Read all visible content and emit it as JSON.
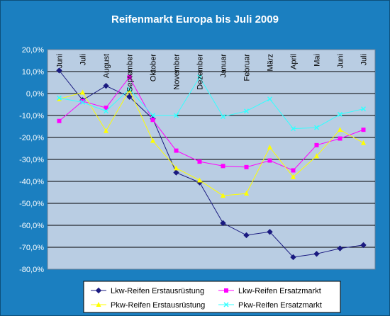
{
  "chart_data": {
    "type": "line",
    "title": "Reifenmarkt Europa bis Juli 2009",
    "xlabel": "",
    "ylabel": "",
    "categories": [
      "Juni",
      "Juli",
      "August",
      "September",
      "Oktober",
      "November",
      "Dezember",
      "Januar",
      "Februar",
      "März",
      "April",
      "Mai",
      "Juni",
      "Juli"
    ],
    "y_ticks": [
      "20,0%",
      "10,0%",
      "0,0%",
      "-10,0%",
      "-20,0%",
      "-30,0%",
      "-40,0%",
      "-50,0%",
      "-60,0%",
      "-70,0%",
      "-80,0%"
    ],
    "ylim": [
      -80,
      20
    ],
    "grid": true,
    "legend_position": "bottom",
    "series": [
      {
        "name": "Lkw-Reifen Erstausrüstung",
        "color": "#1a1a80",
        "marker": "diamond",
        "values": [
          10.5,
          -3,
          3.5,
          -1.5,
          -11.5,
          -36,
          -40.5,
          -59,
          -64.5,
          -63,
          -74.5,
          -73,
          -70.5,
          -69
        ]
      },
      {
        "name": "Lkw-Reifen Ersatzmarkt",
        "color": "#ff00ff",
        "marker": "square",
        "values": [
          -12.5,
          -3.5,
          -6.5,
          7.5,
          -12,
          -26,
          -31,
          -33,
          -33.5,
          -30.5,
          -35,
          -23.5,
          -20.5,
          -16.5
        ]
      },
      {
        "name": "Pkw-Reifen Erstausrüstung",
        "color": "#ffff00",
        "marker": "triangle",
        "values": [
          -2.5,
          0.5,
          -17,
          1.5,
          -21.5,
          -34,
          -39.5,
          -46.5,
          -45.5,
          -24.5,
          -38,
          -28.5,
          -16.5,
          -22.5
        ]
      },
      {
        "name": "Pkw-Reifen Ersatzmarkt",
        "color": "#33ffff",
        "marker": "x",
        "values": [
          -2,
          -4,
          -8,
          2,
          -10,
          -10,
          7.5,
          -10.5,
          -8,
          -2.5,
          -16,
          -15.5,
          -9.5,
          -7
        ]
      }
    ]
  }
}
